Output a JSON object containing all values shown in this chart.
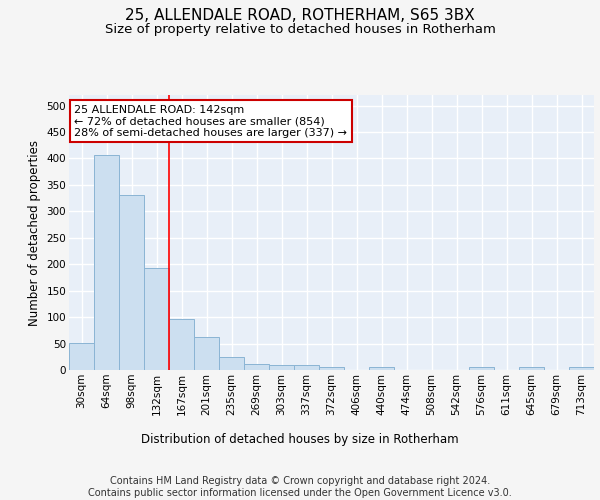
{
  "title": "25, ALLENDALE ROAD, ROTHERHAM, S65 3BX",
  "subtitle": "Size of property relative to detached houses in Rotherham",
  "xlabel": "Distribution of detached houses by size in Rotherham",
  "ylabel": "Number of detached properties",
  "bin_labels": [
    "30sqm",
    "64sqm",
    "98sqm",
    "132sqm",
    "167sqm",
    "201sqm",
    "235sqm",
    "269sqm",
    "303sqm",
    "337sqm",
    "372sqm",
    "406sqm",
    "440sqm",
    "474sqm",
    "508sqm",
    "542sqm",
    "576sqm",
    "611sqm",
    "645sqm",
    "679sqm",
    "713sqm"
  ],
  "bar_heights": [
    52,
    406,
    330,
    192,
    96,
    63,
    25,
    12,
    10,
    10,
    5,
    0,
    5,
    0,
    0,
    0,
    5,
    0,
    5,
    0,
    5
  ],
  "bar_color": "#ccdff0",
  "bar_edge_color": "#8ab4d4",
  "red_line_x": 3.5,
  "annotation_text": "25 ALLENDALE ROAD: 142sqm\n← 72% of detached houses are smaller (854)\n28% of semi-detached houses are larger (337) →",
  "annotation_box_color": "#ffffff",
  "annotation_box_edge": "#cc0000",
  "footer_text": "Contains HM Land Registry data © Crown copyright and database right 2024.\nContains public sector information licensed under the Open Government Licence v3.0.",
  "ylim": [
    0,
    520
  ],
  "yticks": [
    0,
    50,
    100,
    150,
    200,
    250,
    300,
    350,
    400,
    450,
    500
  ],
  "bg_color": "#e8eff8",
  "grid_color": "#ffffff",
  "fig_bg_color": "#f5f5f5",
  "title_fontsize": 11,
  "subtitle_fontsize": 9.5,
  "axis_label_fontsize": 8.5,
  "tick_fontsize": 7.5,
  "footer_fontsize": 7,
  "annotation_fontsize": 8
}
